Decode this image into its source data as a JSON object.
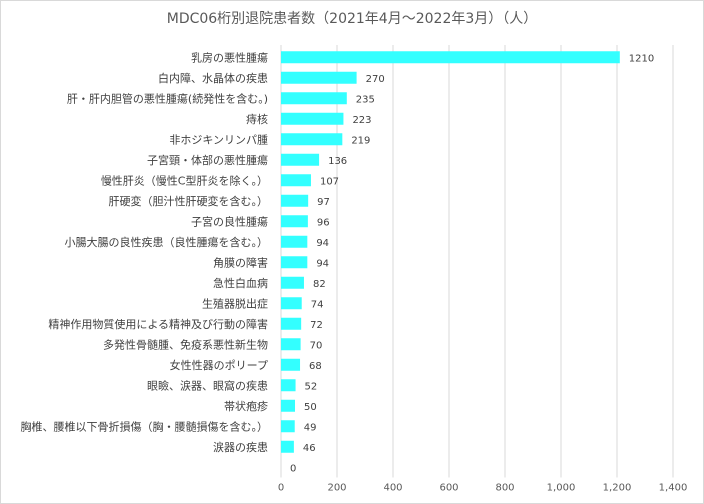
{
  "chart_data": {
    "type": "bar",
    "orientation": "horizontal",
    "title": "MDC06桁別退院患者数（2021年4月～2022年3月）（人）",
    "categories": [
      "乳房の悪性腫瘍",
      "白内障、水晶体の疾患",
      "肝・肝内胆管の悪性腫瘍(続発性を含む。)",
      "痔核",
      "非ホジキンリンパ腫",
      "子宮頸・体部の悪性腫瘍",
      "慢性肝炎（慢性C型肝炎を除く。）",
      "肝硬変（胆汁性肝硬変を含む。）",
      "子宮の良性腫瘍",
      "小腸大腸の良性疾患（良性腫瘍を含む。）",
      "角膜の障害",
      "急性白血病",
      "生殖器脱出症",
      "精神作用物質使用による精神及び行動の障害",
      "多発性骨髄腫、免疫系悪性新生物",
      "女性性器のポリープ",
      "眼瞼、涙器、眼窩の疾患",
      "帯状疱疹",
      "胸椎、腰椎以下骨折損傷（胸・腰髄損傷を含む。）",
      "涙器の疾患",
      ""
    ],
    "values": [
      1210,
      270,
      235,
      223,
      219,
      136,
      107,
      97,
      96,
      94,
      94,
      82,
      74,
      72,
      70,
      68,
      52,
      50,
      49,
      46,
      0
    ],
    "x_ticks": [
      "0",
      "200",
      "400",
      "600",
      "800",
      "1,000",
      "1,200",
      "1,400"
    ],
    "xlim": [
      0,
      1400
    ],
    "grid": true,
    "bar_color": "#33ffff"
  }
}
